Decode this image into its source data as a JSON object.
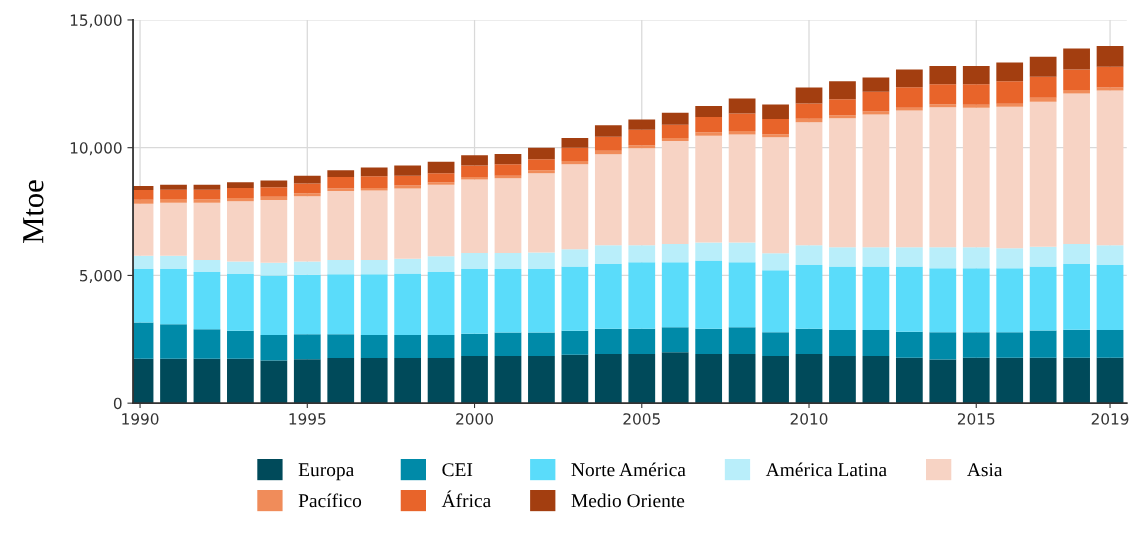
{
  "chart_data": {
    "type": "bar",
    "stacked": true,
    "ylabel": "Mtoe",
    "x": [
      1990,
      1991,
      1992,
      1993,
      1994,
      1995,
      1996,
      1997,
      1998,
      1999,
      2000,
      2001,
      2002,
      2003,
      2004,
      2005,
      2006,
      2007,
      2008,
      2009,
      2010,
      2011,
      2012,
      2013,
      2014,
      2015,
      2016,
      2017,
      2018,
      2019
    ],
    "series": [
      {
        "name": "Europa",
        "color": "#004a5a",
        "values": [
          1740,
          1740,
          1740,
          1740,
          1670,
          1720,
          1770,
          1770,
          1770,
          1770,
          1850,
          1850,
          1850,
          1900,
          1920,
          1920,
          1990,
          1920,
          1920,
          1850,
          1920,
          1850,
          1850,
          1780,
          1710,
          1780,
          1780,
          1780,
          1780,
          1780
        ]
      },
      {
        "name": "CEI",
        "color": "#008aa8",
        "values": [
          1420,
          1350,
          1150,
          1090,
          1000,
          980,
          930,
          900,
          900,
          900,
          870,
          920,
          920,
          930,
          990,
          990,
          980,
          990,
          1050,
          930,
          990,
          1010,
          1010,
          1020,
          1070,
          1000,
          1000,
          1060,
          1090,
          1080
        ]
      },
      {
        "name": "Norte América",
        "color": "#5adcfa",
        "values": [
          2090,
          2160,
          2240,
          2230,
          2330,
          2330,
          2350,
          2380,
          2410,
          2460,
          2530,
          2480,
          2480,
          2520,
          2540,
          2610,
          2550,
          2670,
          2550,
          2420,
          2500,
          2490,
          2490,
          2550,
          2500,
          2500,
          2500,
          2510,
          2580,
          2550
        ]
      },
      {
        "name": "América Latina",
        "color": "#b9eefa",
        "values": [
          520,
          520,
          470,
          490,
          500,
          520,
          550,
          550,
          570,
          620,
          630,
          630,
          650,
          670,
          730,
          660,
          710,
          710,
          770,
          670,
          770,
          750,
          750,
          750,
          820,
          820,
          780,
          770,
          780,
          770
        ]
      },
      {
        "name": "Asia",
        "color": "#f7d3c4",
        "values": [
          2040,
          2070,
          2240,
          2350,
          2450,
          2550,
          2700,
          2720,
          2750,
          2800,
          2870,
          2920,
          3100,
          3330,
          3560,
          3800,
          4030,
          4180,
          4230,
          4540,
          4820,
          5050,
          5200,
          5360,
          5480,
          5460,
          5540,
          5680,
          5890,
          6060
        ]
      },
      {
        "name": "Pacífico",
        "color": "#f08c5a",
        "values": [
          150,
          150,
          130,
          130,
          130,
          120,
          100,
          100,
          120,
          100,
          100,
          100,
          120,
          130,
          140,
          120,
          120,
          130,
          130,
          120,
          130,
          120,
          120,
          100,
          120,
          120,
          120,
          150,
          140,
          120
        ]
      },
      {
        "name": "África",
        "color": "#e8642a",
        "values": [
          380,
          360,
          380,
          390,
          370,
          380,
          450,
          460,
          380,
          350,
          450,
          450,
          430,
          520,
          550,
          600,
          520,
          600,
          690,
          590,
          600,
          630,
          770,
          810,
          780,
          800,
          880,
          830,
          800,
          810
        ]
      },
      {
        "name": "Medio Oriente",
        "color": "#a33e10",
        "values": [
          160,
          200,
          200,
          230,
          270,
          300,
          270,
          340,
          400,
          450,
          400,
          400,
          450,
          380,
          450,
          400,
          470,
          430,
          590,
          570,
          630,
          700,
          560,
          690,
          720,
          720,
          730,
          780,
          820,
          810
        ]
      }
    ],
    "xlim": [
      1989.79,
      2019.5
    ],
    "xticks": [
      1990,
      1995,
      2000,
      2005,
      2010,
      2015,
      2019
    ],
    "ylim": [
      0,
      15000
    ],
    "yticks": [
      0,
      {
        "value": 5000,
        "label": "5,000"
      },
      {
        "value": 10000,
        "label": "10,000"
      },
      {
        "value": 15000,
        "label": "15,000"
      }
    ],
    "grid": true,
    "legend": "bottom"
  }
}
